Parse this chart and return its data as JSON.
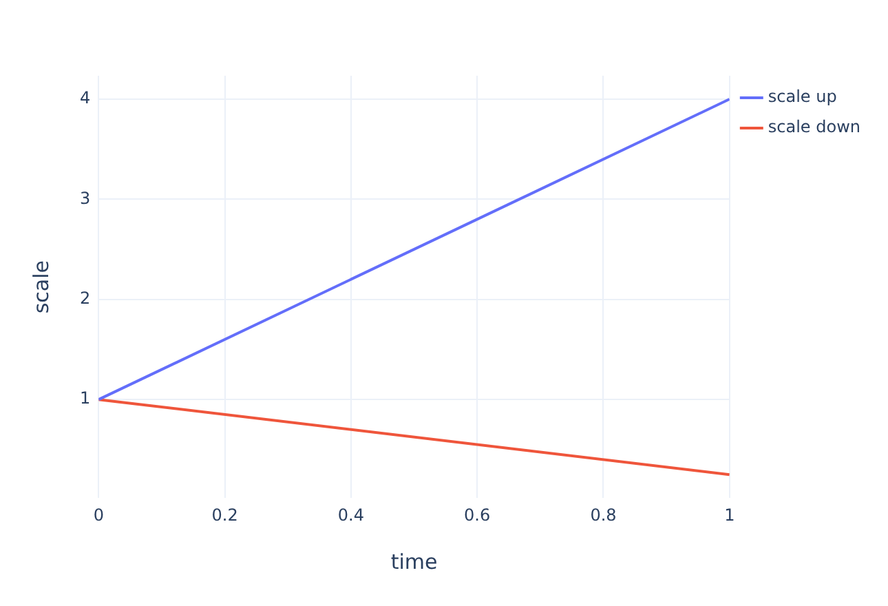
{
  "chart_data": {
    "type": "line",
    "xlabel": "time",
    "ylabel": "scale",
    "x": [
      0,
      1
    ],
    "series": [
      {
        "name": "scale up",
        "color": "#636efa",
        "values": [
          1,
          4
        ]
      },
      {
        "name": "scale down",
        "color": "#ef553b",
        "values": [
          1,
          0.25
        ]
      }
    ],
    "xlim": [
      0,
      1
    ],
    "xticks": [
      0,
      0.2,
      0.4,
      0.6,
      0.8,
      1
    ],
    "ylim": [
      0.016,
      4.234
    ],
    "yticks": [
      1,
      2,
      3,
      4
    ],
    "grid": true,
    "legend": "top right",
    "marker": "none",
    "line_style": "solid"
  }
}
